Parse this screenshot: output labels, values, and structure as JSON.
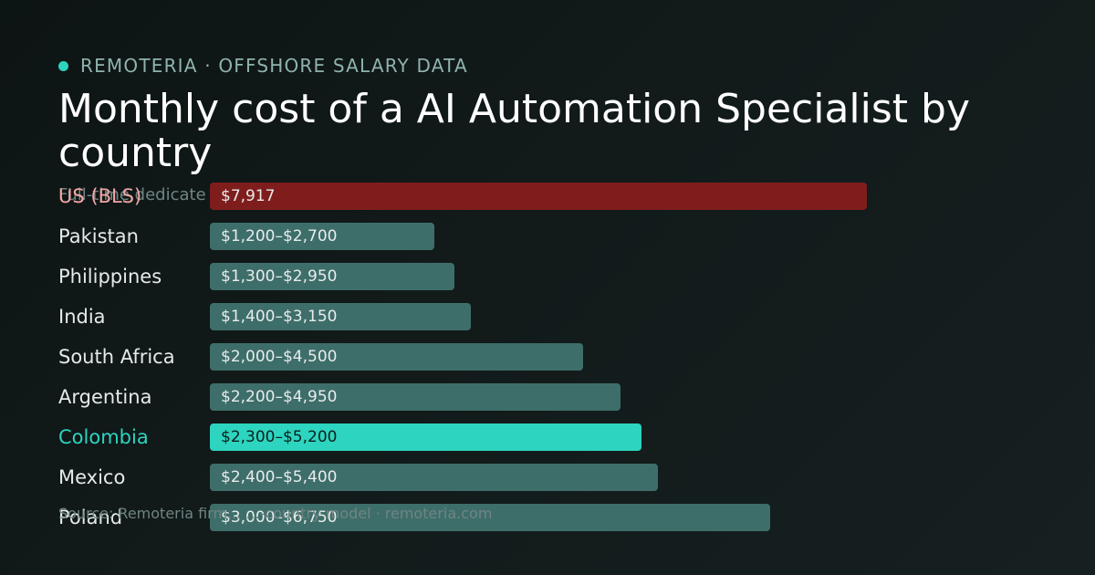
{
  "brand": {
    "dot_color": "#2dd4bf",
    "label": "REMOTERIA · OFFSHORE SALARY DATA"
  },
  "subtitle": "Full-time dedicate",
  "source": "Source: Remoteria firm... ...-country model · remoteria.com",
  "chart_data": {
    "type": "bar",
    "orientation": "horizontal",
    "title": "Monthly cost of a AI Automation Specialist by country",
    "unit": "USD / month",
    "xlim": [
      0,
      10000
    ],
    "grid": false,
    "legend": "none",
    "colors": {
      "benchmark": "#7f1d1d",
      "default": "#3e6e69",
      "highlight": "#2dd4bf"
    },
    "rows": [
      {
        "category": "US (BLS)",
        "low": 7917,
        "high": 7917,
        "label": "$7,917",
        "style": "benchmark"
      },
      {
        "category": "Pakistan",
        "low": 1200,
        "high": 2700,
        "label": "$1,200–$2,700",
        "style": "default"
      },
      {
        "category": "Philippines",
        "low": 1300,
        "high": 2950,
        "label": "$1,300–$2,950",
        "style": "default"
      },
      {
        "category": "India",
        "low": 1400,
        "high": 3150,
        "label": "$1,400–$3,150",
        "style": "default"
      },
      {
        "category": "South Africa",
        "low": 2000,
        "high": 4500,
        "label": "$2,000–$4,500",
        "style": "default"
      },
      {
        "category": "Argentina",
        "low": 2200,
        "high": 4950,
        "label": "$2,200–$4,950",
        "style": "default"
      },
      {
        "category": "Colombia",
        "low": 2300,
        "high": 5200,
        "label": "$2,300–$5,200",
        "style": "highlight"
      },
      {
        "category": "Mexico",
        "low": 2400,
        "high": 5400,
        "label": "$2,400–$5,400",
        "style": "default"
      },
      {
        "category": "Poland",
        "low": 3000,
        "high": 6750,
        "label": "$3,000–$6,750",
        "style": "default"
      }
    ]
  }
}
